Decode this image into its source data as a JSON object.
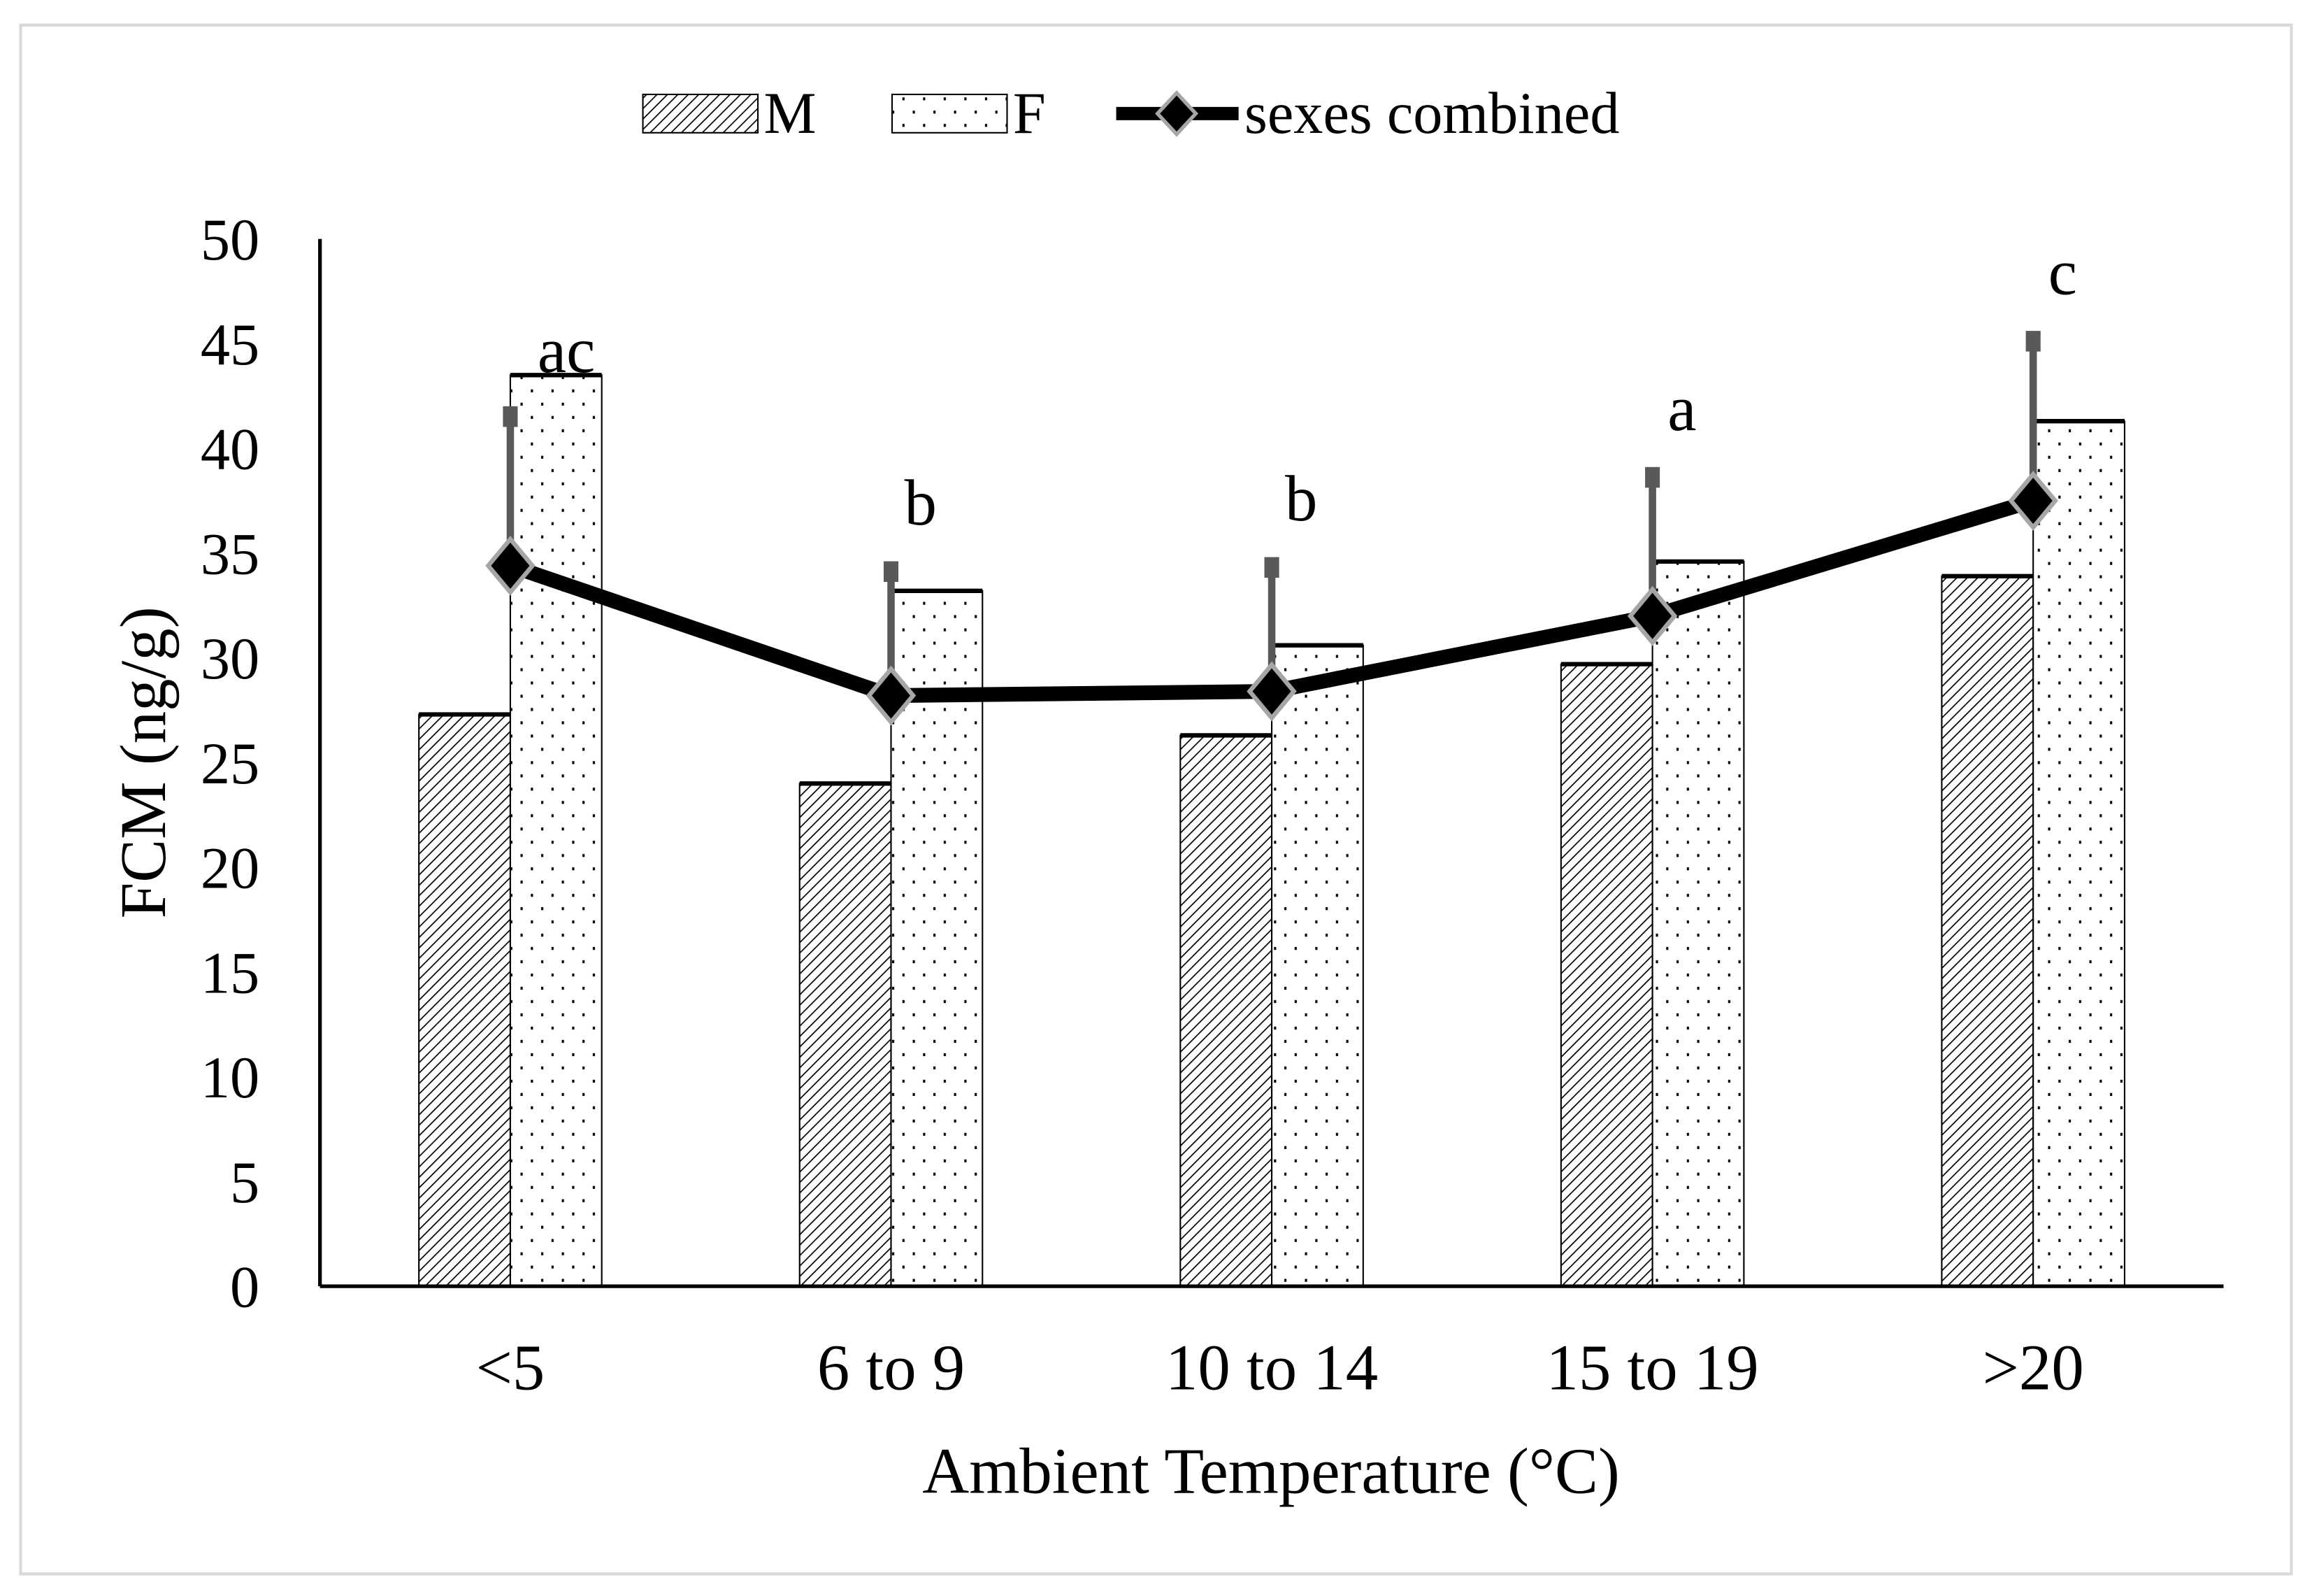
{
  "chart_data": {
    "type": "bar",
    "title": "",
    "xlabel": "Ambient Temperature (°C)",
    "ylabel": "FCM (ng/g)",
    "ylim": [
      0,
      50
    ],
    "yticks": [
      0,
      5,
      10,
      15,
      20,
      25,
      30,
      35,
      40,
      45,
      50
    ],
    "categories": [
      "<5",
      "6 to 9",
      "10 to 14",
      "15 to 19",
      ">20"
    ],
    "series": [
      {
        "name": "M",
        "kind": "bar",
        "pattern": "diagonal-hatch",
        "values": [
          27.3,
          24.0,
          26.3,
          29.7,
          33.9
        ]
      },
      {
        "name": "F",
        "kind": "bar",
        "pattern": "dots",
        "values": [
          43.5,
          33.2,
          30.6,
          34.6,
          41.3
        ]
      },
      {
        "name": "sexes combined",
        "kind": "line",
        "marker": "diamond",
        "values": [
          34.4,
          28.2,
          28.4,
          32.0,
          37.5
        ],
        "error_upper": [
          41.8,
          34.4,
          34.6,
          38.9,
          45.4
        ]
      }
    ],
    "annotations": [
      "ac",
      "b",
      "b",
      "a",
      "c"
    ],
    "legend_position": "top",
    "grid": false,
    "colors": {
      "line": "#000000",
      "errorbar": "#595959",
      "marker_edge": "#a6a6a6"
    }
  }
}
